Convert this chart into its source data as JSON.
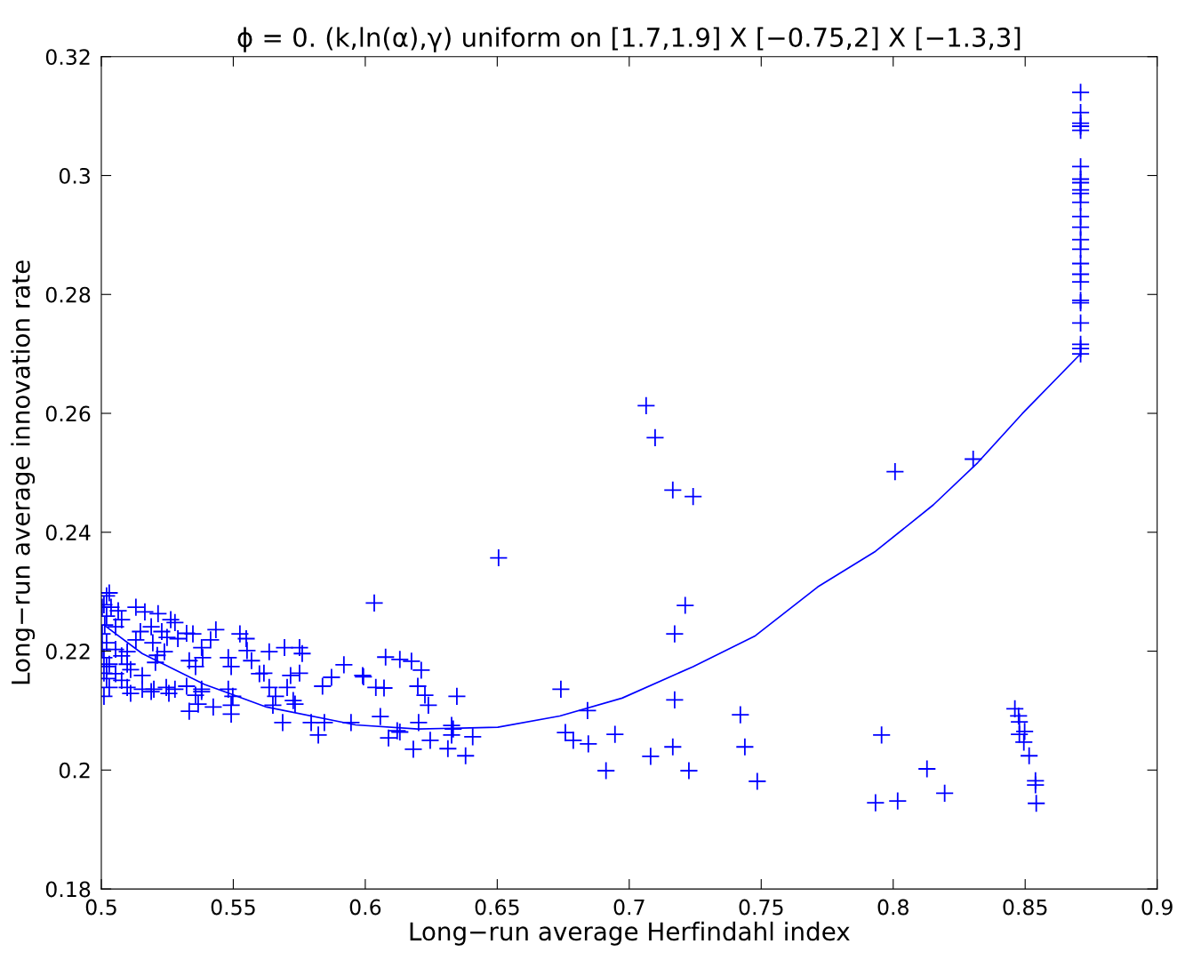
{
  "chart_data": {
    "type": "scatter",
    "title": "ϕ = 0. (k,ln(α),γ) uniform on [1.7,1.9] X [−0.75,2] X [−1.3,3]",
    "xlabel": "Long−run average Herfindahl index",
    "ylabel": "Long−run average innovation rate",
    "xlim": [
      0.5,
      0.9
    ],
    "xticks": [
      0.5,
      0.55,
      0.6,
      0.65,
      0.7,
      0.75,
      0.8,
      0.85,
      0.9
    ],
    "ylim": [
      0.18,
      0.32
    ],
    "yticks": [
      0.18,
      0.2,
      0.22,
      0.24,
      0.26,
      0.28,
      0.3,
      0.32
    ],
    "grid": false,
    "legend": false,
    "series": [
      {
        "marker": "cross",
        "color": "#0000ff",
        "x": [
          0.871,
          0.871,
          0.871,
          0.871,
          0.871,
          0.871,
          0.871,
          0.871,
          0.871,
          0.871,
          0.871,
          0.871,
          0.871,
          0.871,
          0.871,
          0.871,
          0.871,
          0.871,
          0.871,
          0.871,
          0.871,
          0.871,
          0.871,
          0.871,
          0.8461,
          0.8475,
          0.8478,
          0.8498,
          0.8478,
          0.8495,
          0.8515,
          0.8539,
          0.8539,
          0.8542,
          0.7064,
          0.7098,
          0.7165,
          0.7242,
          0.7212,
          0.7172,
          0.7172,
          0.7165,
          0.7081,
          0.7226,
          0.7421,
          0.7438,
          0.7485,
          0.6946,
          0.6912,
          0.6842,
          0.6845,
          0.6741,
          0.6758,
          0.6788,
          0.6505,
          0.8007,
          0.8303,
          0.7956,
          0.7933,
          0.8017,
          0.8128,
          0.8195,
          0.6034,
          0.6077,
          0.6131,
          0.6175,
          0.6212,
          0.5993,
          0.604,
          0.6071,
          0.6199,
          0.6226,
          0.6239,
          0.6347,
          0.6057,
          0.6202,
          0.6327,
          0.6333,
          0.6131,
          0.6121,
          0.6088,
          0.6246,
          0.6327,
          0.6407,
          0.6182,
          0.6313,
          0.638,
          0.502,
          0.503,
          0.501,
          0.5037,
          0.5064,
          0.5131,
          0.5165,
          0.5215,
          0.5263,
          0.5279,
          0.502,
          0.5077,
          0.5013,
          0.5054,
          0.5189,
          0.5148,
          0.5229,
          0.5323,
          0.5347,
          0.5434,
          0.5525,
          0.5549,
          0.529,
          0.5249,
          0.5131,
          0.5414,
          0.5195,
          0.538,
          0.5552,
          0.502,
          0.5054,
          0.5098,
          0.501,
          0.5077,
          0.5212,
          0.5239,
          0.5384,
          0.5481,
          0.5569,
          0.5636,
          0.5694,
          0.5751,
          0.5761,
          0.503,
          0.5098,
          0.5205,
          0.5333,
          0.5357,
          0.5492,
          0.5616,
          0.501,
          0.5054,
          0.5111,
          0.502,
          0.5077,
          0.5155,
          0.5717,
          0.5751,
          0.5599,
          0.5838,
          0.5872,
          0.5919,
          0.599,
          0.503,
          0.5098,
          0.5155,
          0.5199,
          0.5246,
          0.5279,
          0.5323,
          0.538,
          0.5704,
          0.5636,
          0.5111,
          0.5189,
          0.5256,
          0.5357,
          0.538,
          0.5481,
          0.5727,
          0.566,
          0.5498,
          0.5492,
          0.5367,
          0.5424,
          0.5333,
          0.5492,
          0.565,
          0.5734,
          0.5687,
          0.5795,
          0.5822,
          0.5845,
          0.5946,
          0.501,
          0.502,
          0.5003,
          0.5003,
          0.5003
        ],
        "values": [
          0.314,
          0.3106,
          0.3088,
          0.3083,
          0.3076,
          0.3015,
          0.2994,
          0.2988,
          0.2976,
          0.297,
          0.2955,
          0.2931,
          0.2913,
          0.2892,
          0.2876,
          0.2852,
          0.2834,
          0.2821,
          0.279,
          0.2786,
          0.2752,
          0.2716,
          0.2709,
          0.27,
          0.2103,
          0.2091,
          0.2081,
          0.2065,
          0.206,
          0.2047,
          0.2024,
          0.1982,
          0.1975,
          0.1944,
          0.2613,
          0.2559,
          0.2471,
          0.246,
          0.2277,
          0.2229,
          0.2118,
          0.2039,
          0.2023,
          0.1999,
          0.2093,
          0.2039,
          0.1981,
          0.206,
          0.1999,
          0.21,
          0.2044,
          0.2136,
          0.2063,
          0.205,
          0.2357,
          0.2502,
          0.2523,
          0.2059,
          0.1945,
          0.1948,
          0.2002,
          0.1961,
          0.2281,
          0.219,
          0.2186,
          0.2183,
          0.2168,
          0.2157,
          0.2139,
          0.2138,
          0.2141,
          0.2126,
          0.2109,
          0.2124,
          0.209,
          0.208,
          0.2075,
          0.2069,
          0.2064,
          0.2066,
          0.2054,
          0.205,
          0.2059,
          0.2056,
          0.2035,
          0.2036,
          0.2024,
          0.2293,
          0.2298,
          0.2278,
          0.2274,
          0.2268,
          0.2274,
          0.2266,
          0.2263,
          0.2253,
          0.2248,
          0.2259,
          0.2253,
          0.2244,
          0.2241,
          0.2241,
          0.2233,
          0.2233,
          0.223,
          0.2229,
          0.2236,
          0.2229,
          0.2221,
          0.2221,
          0.2223,
          0.2219,
          0.2219,
          0.2214,
          0.2206,
          0.2201,
          0.2214,
          0.2203,
          0.2199,
          0.2189,
          0.2192,
          0.2193,
          0.2199,
          0.2189,
          0.2189,
          0.2184,
          0.2199,
          0.2206,
          0.2206,
          0.2196,
          0.2178,
          0.2178,
          0.2181,
          0.2184,
          0.2174,
          0.2174,
          0.2163,
          0.2163,
          0.2162,
          0.2169,
          0.2154,
          0.2151,
          0.2159,
          0.2159,
          0.2163,
          0.2162,
          0.2141,
          0.2156,
          0.2177,
          0.2159,
          0.2139,
          0.2139,
          0.2136,
          0.2136,
          0.2139,
          0.2136,
          0.2141,
          0.2136,
          0.2139,
          0.2139,
          0.2129,
          0.2132,
          0.2129,
          0.2126,
          0.2132,
          0.2136,
          0.2117,
          0.2124,
          0.2124,
          0.2109,
          0.2111,
          0.2106,
          0.2099,
          0.2094,
          0.2109,
          0.2111,
          0.208,
          0.208,
          0.2059,
          0.208,
          0.208,
          0.2124,
          0.2174,
          0.2203,
          0.2229,
          0.2274
        ]
      },
      {
        "type": "line",
        "color": "#0000ff",
        "line_style": "solid",
        "marker": "none",
        "x": [
          0.501,
          0.5155,
          0.5391,
          0.5626,
          0.5963,
          0.6199,
          0.6502,
          0.6737,
          0.6973,
          0.7242,
          0.7478,
          0.7714,
          0.7933,
          0.8152,
          0.832,
          0.8488,
          0.871
        ],
        "values": [
          0.2244,
          0.2196,
          0.2144,
          0.2106,
          0.2076,
          0.2069,
          0.2072,
          0.2091,
          0.2121,
          0.2174,
          0.2226,
          0.2308,
          0.2368,
          0.2446,
          0.2517,
          0.2599,
          0.27
        ]
      }
    ]
  }
}
